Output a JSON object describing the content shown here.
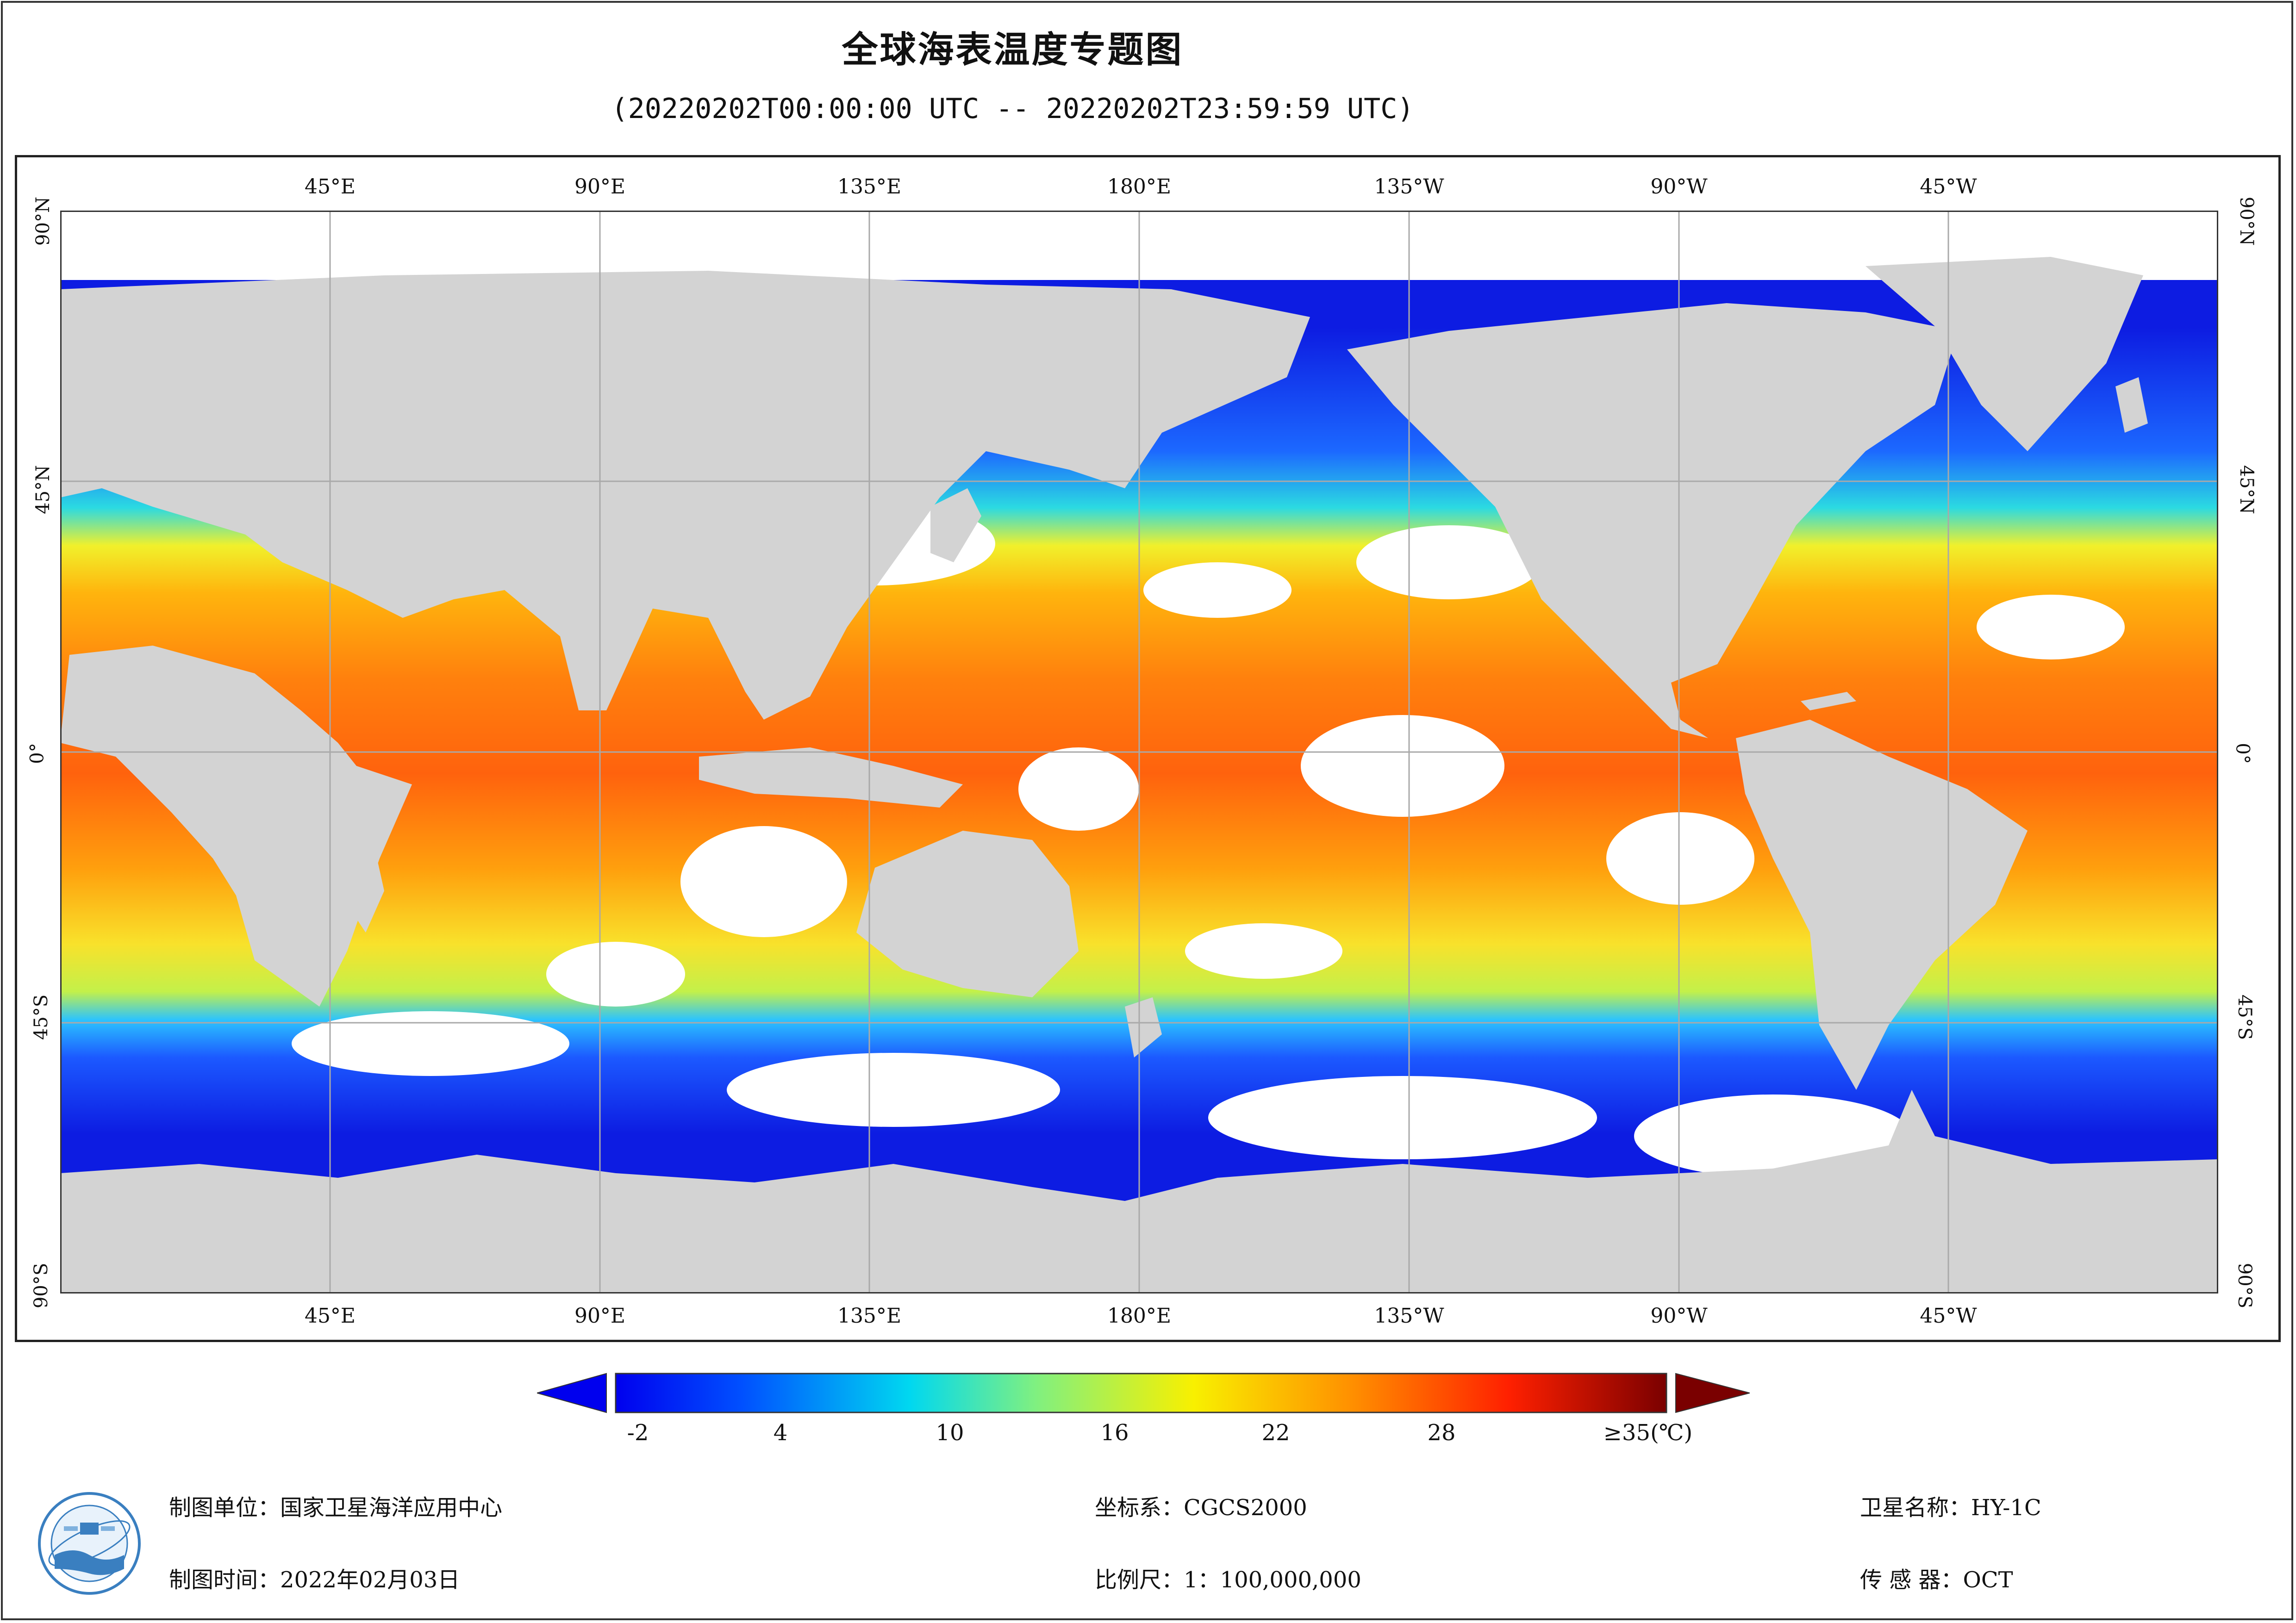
{
  "header": {
    "title": "全球海表温度专题图",
    "subtitle": "(20220202T00:00:00 UTC -- 20220202T23:59:59 UTC)"
  },
  "map": {
    "lon_labels": [
      "45°E",
      "90°E",
      "135°E",
      "180°E",
      "135°W",
      "90°W",
      "45°W"
    ],
    "lat_labels": [
      "90°N",
      "45°N",
      "0°",
      "45°S",
      "90°S"
    ],
    "colors": {
      "land": "#d3d3d3",
      "cloud": "#ffffff",
      "grid": "#a9a9a9"
    }
  },
  "legend": {
    "ticks": [
      "-2",
      "4",
      "10",
      "16",
      "22",
      "28",
      "≥35(℃)"
    ],
    "min_arrow_color": "#0000ee",
    "max_arrow_color": "#7a0000"
  },
  "footer": {
    "unit_label": "制图单位：国家卫星海洋应用中心",
    "time_label": "制图时间：2022年02月03日",
    "crs_label": "坐标系：CGCS2000",
    "scale_label": "比例尺：1：100,000,000",
    "satellite_label": "卫星名称：HY-1C",
    "sensor_label": "传 感 器：OCT"
  }
}
